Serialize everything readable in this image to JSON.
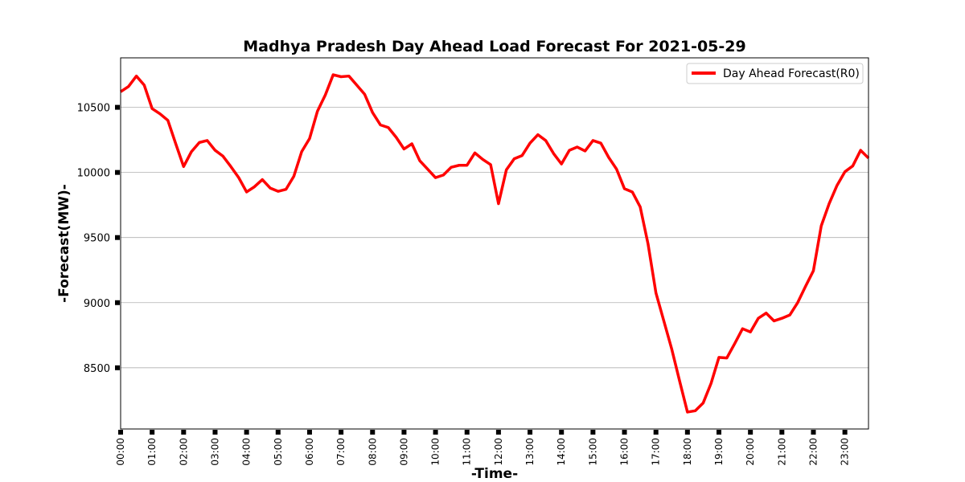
{
  "chart_data": {
    "type": "line",
    "title": "Madhya Pradesh Day Ahead Load Forecast For 2021-05-29",
    "xlabel": "-Time-",
    "ylabel": "-Forecast(MW)-",
    "ylim": [
      8030,
      10880
    ],
    "y_ticks": [
      8500,
      9000,
      9500,
      10000,
      10500
    ],
    "x_ticks": [
      "00:00",
      "01:00",
      "02:00",
      "03:00",
      "04:00",
      "05:00",
      "06:00",
      "07:00",
      "08:00",
      "09:00",
      "10:00",
      "11:00",
      "12:00",
      "13:00",
      "14:00",
      "15:00",
      "16:00",
      "17:00",
      "18:00",
      "19:00",
      "20:00",
      "21:00",
      "22:00",
      "23:00"
    ],
    "grid": "horizontal",
    "legend_position": "top-right",
    "series": [
      {
        "name": "Day Ahead Forecast(R0)",
        "color": "#ff0000",
        "x_step_minutes": 15,
        "values": [
          10620,
          10660,
          10740,
          10670,
          10490,
          10450,
          10400,
          10220,
          10045,
          10160,
          10230,
          10245,
          10170,
          10125,
          10045,
          9960,
          9850,
          9890,
          9945,
          9880,
          9855,
          9870,
          9970,
          10160,
          10260,
          10470,
          10595,
          10750,
          10735,
          10740,
          10670,
          10600,
          10460,
          10365,
          10345,
          10270,
          10180,
          10220,
          10090,
          10025,
          9960,
          9980,
          10040,
          10055,
          10055,
          10150,
          10100,
          10060,
          9760,
          10020,
          10105,
          10130,
          10225,
          10290,
          10245,
          10145,
          10065,
          10170,
          10195,
          10165,
          10245,
          10225,
          10115,
          10025,
          9875,
          9850,
          9735,
          9450,
          9075,
          8860,
          8645,
          8400,
          8160,
          8170,
          8230,
          8380,
          8580,
          8575,
          8685,
          8800,
          8775,
          8880,
          8920,
          8860,
          8880,
          8905,
          9000,
          9125,
          9245,
          9590,
          9760,
          9900,
          10005,
          10050,
          10170,
          10110
        ]
      }
    ]
  }
}
